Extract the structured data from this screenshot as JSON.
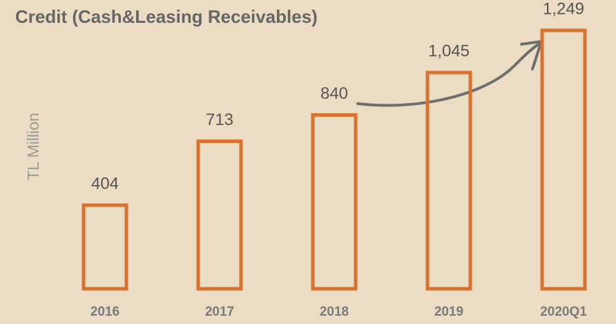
{
  "chart_data": {
    "type": "bar",
    "title": "Credit (Cash&Leasing Receivables)",
    "y_label": "TL Million",
    "categories": [
      "2016",
      "2017",
      "2018",
      "2019",
      "2020Q1"
    ],
    "values": [
      404,
      713,
      840,
      1045,
      1249
    ],
    "value_labels": [
      "404",
      "713",
      "840",
      "1,045",
      "1,249"
    ],
    "color": "#d9712f"
  }
}
